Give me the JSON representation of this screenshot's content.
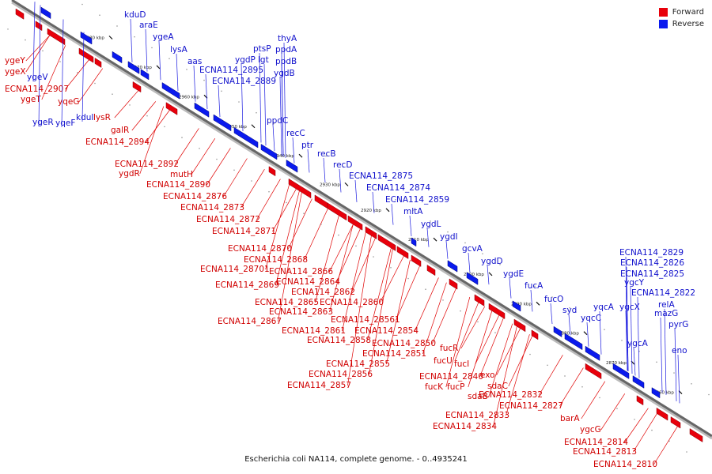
{
  "legend": {
    "forward_label": "Forward",
    "reverse_label": "Reverse",
    "forward_color": "#e8000b",
    "reverse_color": "#0a1aee"
  },
  "caption": "Escherichia coli NA114, complete genome. - 0..4935241",
  "scale_ticks": [
    "2980 kbp",
    "2970 kbp",
    "2960 kbp",
    "2950 kbp",
    "2940 kbp",
    "2930 kbp",
    "2920 kbp",
    "2910 kbp",
    "2900 kbp",
    "2890 kbp",
    "2880 kbp",
    "2870 kbp",
    "2860 kbp"
  ],
  "genes_forward": [
    "ygeY",
    "ygeX",
    "ECNA114_2907",
    "ygeT",
    "yqeG",
    "lysR",
    "galR",
    "ECNA114_2894",
    "ECNA114_2892",
    "ygdR",
    "mutH",
    "ECNA114_2890",
    "ECNA114_2876",
    "ECNA114_2873",
    "ECNA114_2872",
    "ECNA114_2871",
    "ECNA114_2870",
    "ECNA114_2868",
    "ECNA114_28701",
    "ECNA114_2866",
    "ECNA114_2869",
    "ECNA114_2864",
    "ECNA114_2862",
    "ECNA114_2865",
    "ECNA114_2860",
    "ECNA114_2863",
    "ECNA114_2867",
    "ECNA114_28561",
    "ECNA114_2861",
    "ECNA114_2854",
    "ECNA114_2858",
    "ECNA114_2850",
    "ECNA114_2851",
    "ECNA114_2855",
    "ECNA114_2856",
    "ECNA114_2857",
    "fucR",
    "fucU",
    "fucI",
    "ECNA114_2840",
    "fucK",
    "fucP",
    "exo",
    "sdaC",
    "sdaB",
    "ECNA114_2832",
    "ECNA114_2827",
    "ECNA114_2833",
    "ECNA114_2834",
    "barA",
    "ygcG",
    "ECNA114_2814",
    "ECNA114_2813",
    "ECNA114_2810"
  ],
  "genes_reverse": [
    "kduD",
    "araE",
    "ygeA",
    "lysA",
    "aas",
    "ptsP",
    "thyA",
    "ygdP",
    "lgt",
    "ppdA",
    "ppdB",
    "ECNA114_2895",
    "ygdB",
    "ECNA114_2889",
    "ygeV",
    "ygeR",
    "yqeF",
    "kduI",
    "ppdC",
    "recC",
    "ptr",
    "recB",
    "recD",
    "ECNA114_2875",
    "ECNA114_2874",
    "ECNA114_2859",
    "mltA",
    "ygdL",
    "ygdI",
    "gcvA",
    "ygdD",
    "ygdE",
    "fucA",
    "fucO",
    "syd",
    "yqcC",
    "yqcA",
    "ygcY",
    "ygcX",
    "ECNA114_2829",
    "ECNA114_2826",
    "ECNA114_2825",
    "ECNA114_2822",
    "relA",
    "mazG",
    "pyrG",
    "ygcA",
    "eno"
  ]
}
